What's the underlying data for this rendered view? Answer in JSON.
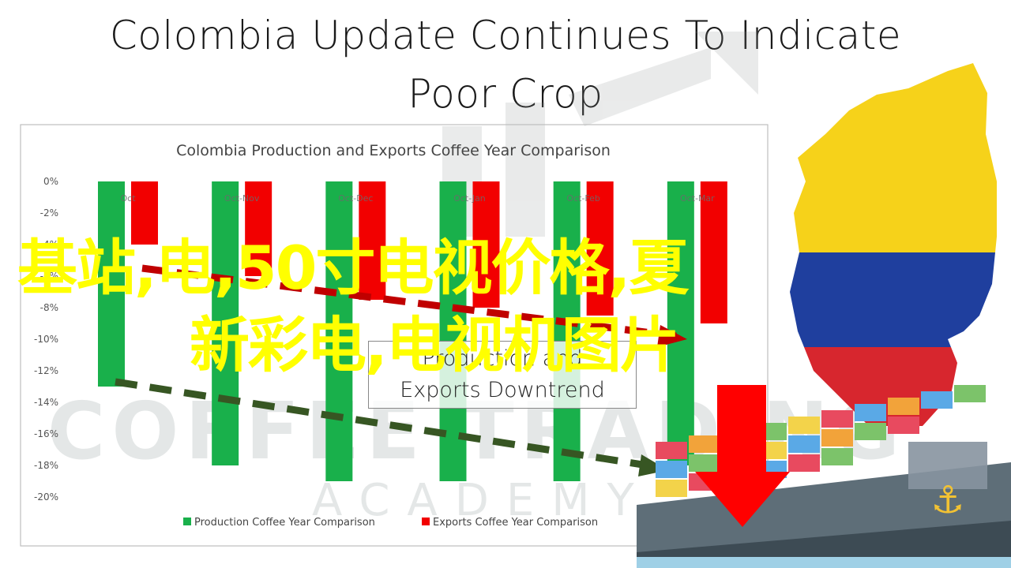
{
  "headline": {
    "line1": "Colombia Update Continues To Indicate",
    "line2": "Poor Crop"
  },
  "overlay": {
    "line1": "基站,电,50寸电视价格,夏",
    "line2": "新彩电,电视机图片",
    "color": "#ffff00"
  },
  "watermark": {
    "brand": "COFFEE TRADING",
    "sub": "ACADEMY"
  },
  "callout": {
    "line1": "Production and",
    "line2": "Exports Downtrend"
  },
  "colors": {
    "production": "#19b04b",
    "exports": "#f20000",
    "trend_exports": "#c00000",
    "trend_production": "#375623",
    "down_arrow": "#ff0000",
    "map_yellow": "#f6d21a",
    "map_blue": "#1f3f9e",
    "map_red": "#d7262e"
  },
  "icons": [
    "colombia-map-icon",
    "cargo-ship-icon",
    "down-arrow-icon",
    "trend-arrow-icon"
  ],
  "chart_data": {
    "type": "bar",
    "title": "Colombia Production and Exports Coffee Year Comparison",
    "categories": [
      "Oct",
      "Oct-Nov",
      "Oct-Dec",
      "Oct-Jan",
      "Oct-Feb",
      "Oct-Mar"
    ],
    "series": [
      {
        "name": "Production Coffee Year Comparison",
        "values": [
          -13,
          -18,
          -19,
          -19,
          -19,
          -18
        ]
      },
      {
        "name": "Exports Coffee Year Comparison",
        "values": [
          -4,
          -6,
          -7.5,
          -8,
          -8.5,
          -9
        ]
      }
    ],
    "ylim": [
      -20,
      0
    ],
    "yticks": [
      "0%",
      "-2%",
      "-4%",
      "-6%",
      "-8%",
      "-10%",
      "-12%",
      "-14%",
      "-16%",
      "-18%",
      "-20%"
    ],
    "grid": false,
    "legend": "bottom"
  }
}
